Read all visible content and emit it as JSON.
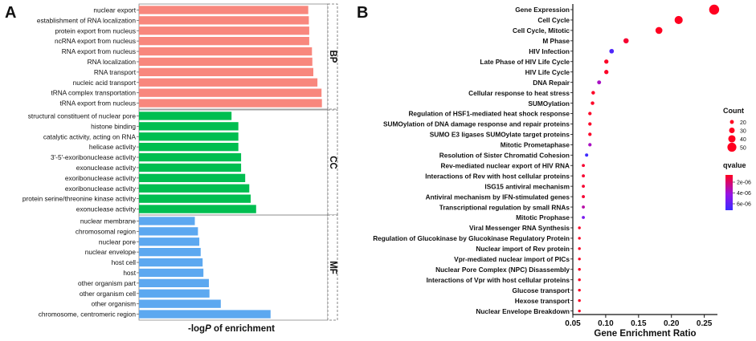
{
  "chart_data": [
    {
      "panel": "A",
      "type": "bar",
      "orientation": "horizontal",
      "xlabel_prefix": "-log",
      "xlabel_italic": "P",
      "xlabel_suffix": " of enrichment",
      "xlim": [
        0,
        10
      ],
      "groups": [
        {
          "name": "BP",
          "color": "#F8877D",
          "categories": [
            "nuclear export",
            "establishment of RNA localization",
            "protein export from nucleus",
            "ncRNA export from nucleus",
            "RNA export from nucleus",
            "RNA localization",
            "RNA transport",
            "nucleic acid transport",
            "tRNA complex transportation",
            "tRNA export from nucleus"
          ],
          "values": [
            8.67,
            8.7,
            8.72,
            8.72,
            8.86,
            8.88,
            8.93,
            9.14,
            9.35,
            9.37
          ]
        },
        {
          "name": "CC",
          "color": "#00BE50",
          "categories": [
            "structural constituent of nuclear pore",
            "histone binding",
            "catalytic activity, acting on RNA",
            "helicase activity",
            "3'-5'-exoribonuclease activity",
            "exonuclease activity",
            "exoribonuclease activity",
            "exoribonuclease activity",
            "protein serine/threonine kinase activity",
            "exonuclease activity"
          ],
          "values": [
            4.74,
            5.09,
            5.09,
            5.09,
            5.23,
            5.23,
            5.44,
            5.65,
            5.72,
            6.0
          ]
        },
        {
          "name": "MF",
          "color": "#5CA8F0",
          "categories": [
            "nuclear membrane",
            "chromosomal region",
            "nuclear pore",
            "nuclear envelope",
            "host cell",
            "host",
            "other organism part",
            "other organism cell",
            "other organism",
            "chromosome, centromeric region"
          ],
          "values": [
            2.86,
            3.02,
            3.09,
            3.16,
            3.26,
            3.3,
            3.58,
            3.61,
            4.19,
            6.74
          ]
        }
      ]
    },
    {
      "panel": "B",
      "type": "scatter",
      "xlabel": "Gene Enrichment Ratio",
      "xlim": [
        0.05,
        0.27
      ],
      "xticks": [
        "0.05",
        "0.10",
        "0.15",
        "0.20",
        "0.25"
      ],
      "categories": [
        "Gene Expression",
        "Cell Cycle",
        "Cell Cycle, Mitotic",
        "M Phase",
        "HIV Infection",
        "Late Phase of HIV Life Cycle",
        "HIV Life Cycle",
        "DNA Repair",
        "Cellular response to heat stress",
        "SUMOylation",
        "Regulation of HSF1-mediated heat shock response",
        "SUMOylation of DNA damage response and repair proteins",
        "SUMO E3 ligases SUMOylate target proteins",
        "Mitotic Prometaphase",
        "Resolution of Sister Chromatid Cohesion",
        "Rev-mediated nuclear export of HIV RNA",
        "Interactions of Rev with host cellular proteins",
        "ISG15 antiviral mechanism",
        "Antiviral mechanism by IFN-stimulated genes",
        "Transcriptional regulation by small RNAs",
        "Mitotic Prophase",
        "Viral Messenger RNA Synthesis",
        "Regulation of Glucokinase by Glucokinase Regulatory Protein",
        "Nuclear import of Rev protein",
        "Vpr-mediated nuclear import of PICs",
        "Nuclear Pore Complex (NPC) Disassembly",
        "Interactions of Vpr with host cellular proteins",
        "Glucose transport",
        "Hexose transport",
        "Nuclear Envelope Breakdown"
      ],
      "x": [
        0.265,
        0.211,
        0.181,
        0.131,
        0.109,
        0.101,
        0.101,
        0.09,
        0.081,
        0.08,
        0.076,
        0.076,
        0.076,
        0.076,
        0.071,
        0.066,
        0.066,
        0.066,
        0.066,
        0.066,
        0.066,
        0.06,
        0.06,
        0.06,
        0.06,
        0.06,
        0.06,
        0.06,
        0.06,
        0.06
      ],
      "count": [
        56,
        45,
        38,
        28,
        24,
        22,
        22,
        20,
        18,
        18,
        17,
        17,
        17,
        17,
        16,
        15,
        15,
        15,
        15,
        15,
        15,
        13,
        13,
        13,
        13,
        13,
        13,
        13,
        13,
        13
      ],
      "qvalue": [
        1e-07,
        1e-07,
        1e-07,
        4e-07,
        5.9e-06,
        2e-07,
        2e-07,
        3e-06,
        2e-07,
        2e-07,
        2e-07,
        2e-07,
        2e-07,
        3e-06,
        6.4e-06,
        4e-07,
        4e-07,
        4e-07,
        4e-07,
        2.5e-06,
        4.5e-06,
        2e-07,
        2e-07,
        2e-07,
        2e-07,
        2e-07,
        2e-07,
        2e-07,
        2e-07,
        2e-07
      ],
      "legend": {
        "size_title": "Count",
        "size_values": [
          "20",
          "30",
          "40",
          "50"
        ],
        "color_title": "qvalue",
        "color_ticks": [
          "2e-06",
          "4e-06",
          "6e-06"
        ],
        "color_low": "#FF0020",
        "color_high": "#3B2BFF"
      }
    }
  ]
}
